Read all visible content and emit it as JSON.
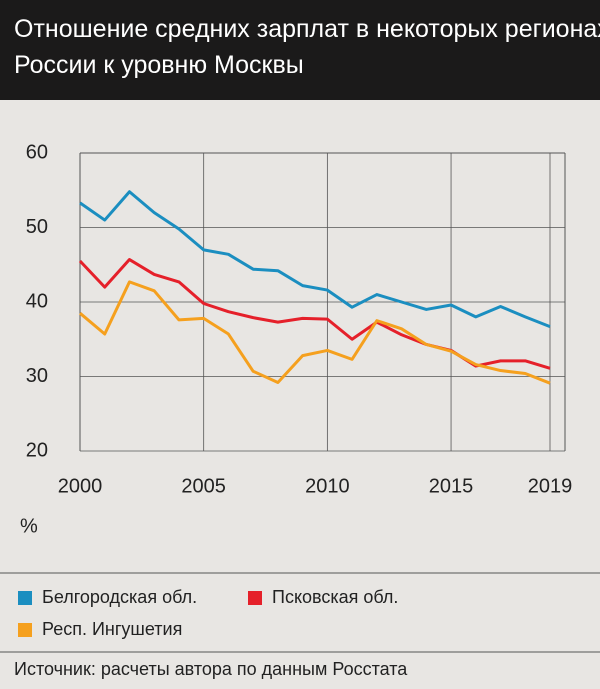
{
  "chart_data": {
    "type": "line",
    "title": "Отношение средних зарплат в некоторых регионах России к уровню Москвы",
    "ylabel": "%",
    "source": "Источник: расчеты автора по данным Росстата",
    "x": [
      2000,
      2001,
      2002,
      2003,
      2004,
      2005,
      2006,
      2007,
      2008,
      2009,
      2010,
      2011,
      2012,
      2013,
      2014,
      2015,
      2016,
      2017,
      2018,
      2019
    ],
    "xlim": [
      2000,
      2019
    ],
    "xticks": [
      2000,
      2005,
      2010,
      2015,
      2019
    ],
    "ylim": [
      20,
      60
    ],
    "yticks": [
      20,
      30,
      40,
      50,
      60
    ],
    "grid": true,
    "series": [
      {
        "name": "Белгородская обл.",
        "color": "#1b8ec0",
        "values": [
          53.3,
          51,
          54.8,
          52,
          49.8,
          47,
          46.4,
          44.4,
          44.2,
          42.2,
          41.6,
          39.3,
          41,
          40,
          39,
          39.6,
          38,
          39.4,
          38,
          36.7
        ]
      },
      {
        "name": "Псковская обл.",
        "color": "#e5202a",
        "values": [
          45.5,
          42,
          45.7,
          43.7,
          42.7,
          39.8,
          38.7,
          37.9,
          37.3,
          37.8,
          37.7,
          35,
          37.3,
          35.6,
          34.3,
          33.5,
          31.4,
          32.1,
          32.1,
          31.1
        ]
      },
      {
        "name": "Респ. Ингушетия",
        "color": "#f5a01e",
        "values": [
          38.5,
          35.7,
          42.7,
          41.5,
          37.6,
          37.8,
          35.7,
          30.7,
          29.2,
          32.8,
          33.5,
          32.3,
          37.5,
          36.4,
          34.3,
          33.4,
          31.6,
          30.8,
          30.4,
          29.1
        ]
      }
    ]
  }
}
